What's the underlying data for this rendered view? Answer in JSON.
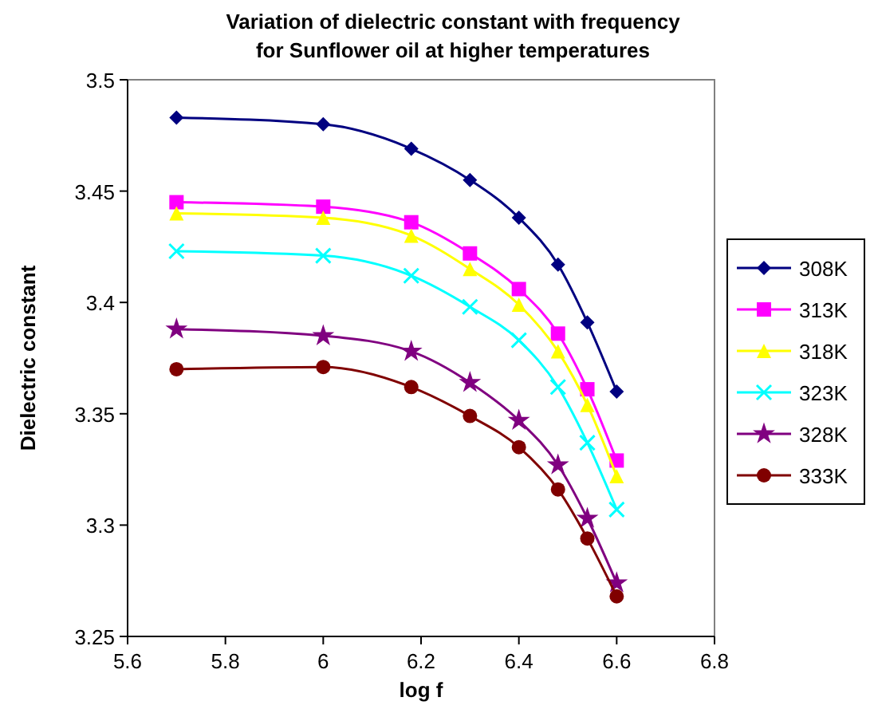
{
  "chart_data": {
    "type": "line",
    "title": "Variation of dielectric constant with frequency\nfor Sunflower oil at higher temperatures",
    "xlabel": "log f",
    "ylabel": "Dielectric constant",
    "x": [
      5.7,
      6,
      6.18,
      6.3,
      6.4,
      6.48,
      6.54,
      6.6
    ],
    "series": [
      {
        "name": "308K",
        "color": "#000080",
        "marker": "diamond",
        "values": [
          3.483,
          3.48,
          3.469,
          3.455,
          3.438,
          3.417,
          3.391,
          3.36
        ]
      },
      {
        "name": "313K",
        "color": "#ff00ff",
        "marker": "square",
        "values": [
          3.445,
          3.443,
          3.436,
          3.422,
          3.406,
          3.386,
          3.361,
          3.329
        ]
      },
      {
        "name": "318K",
        "color": "#ffff00",
        "marker": "triangle",
        "values": [
          3.44,
          3.438,
          3.43,
          3.415,
          3.399,
          3.378,
          3.354,
          3.322
        ]
      },
      {
        "name": "323K",
        "color": "#00ffff",
        "marker": "cross",
        "values": [
          3.423,
          3.421,
          3.412,
          3.398,
          3.383,
          3.362,
          3.337,
          3.307
        ]
      },
      {
        "name": "328K",
        "color": "#800080",
        "marker": "star",
        "values": [
          3.388,
          3.385,
          3.378,
          3.364,
          3.347,
          3.327,
          3.303,
          3.274
        ]
      },
      {
        "name": "333K",
        "color": "#800000",
        "marker": "circle",
        "values": [
          3.37,
          3.371,
          3.362,
          3.349,
          3.335,
          3.316,
          3.294,
          3.268
        ]
      }
    ],
    "xlim": [
      5.6,
      6.8
    ],
    "xticks": [
      5.6,
      5.8,
      6,
      6.2,
      6.4,
      6.6,
      6.8
    ],
    "ylim": [
      3.25,
      3.5
    ],
    "yticks": [
      3.25,
      3.3,
      3.35,
      3.4,
      3.45,
      3.5
    ],
    "grid": false,
    "legend": "right",
    "line_style": "solid"
  }
}
